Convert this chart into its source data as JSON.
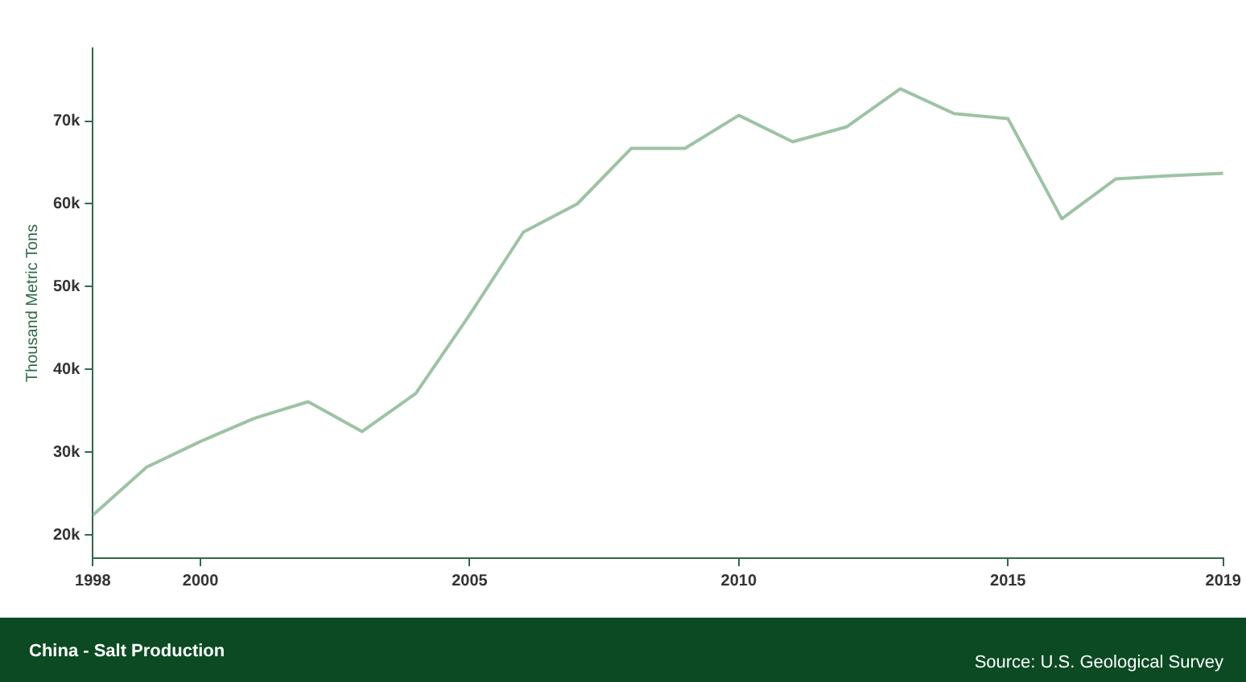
{
  "chart_data": {
    "type": "line",
    "title": "China - Salt Production",
    "ylabel": "Thousand Metric Tons",
    "x": [
      1998,
      1999,
      2000,
      2001,
      2002,
      2003,
      2004,
      2005,
      2006,
      2007,
      2008,
      2009,
      2010,
      2011,
      2012,
      2013,
      2014,
      2015,
      2016,
      2017,
      2018,
      2019
    ],
    "series": [
      {
        "color": "#9dc3a5",
        "values": [
          22400,
          28200,
          31300,
          34100,
          36100,
          32500,
          37100,
          46600,
          56600,
          60000,
          66700,
          66700,
          70700,
          67500,
          69300,
          73900,
          70900,
          70300,
          58200,
          63000,
          63400,
          63700
        ]
      }
    ],
    "xlim": [
      1998,
      2019
    ],
    "xticks": [
      1998,
      2000,
      2005,
      2010,
      2015,
      2019
    ],
    "ylim": [
      17200,
      78800
    ],
    "yticks": [
      {
        "value": 20000,
        "label": "20k"
      },
      {
        "value": 30000,
        "label": "30k"
      },
      {
        "value": 40000,
        "label": "40k"
      },
      {
        "value": 50000,
        "label": "50k"
      },
      {
        "value": 60000,
        "label": "60k"
      },
      {
        "value": 70000,
        "label": "70k"
      }
    ],
    "grid": false,
    "legend": false,
    "marker": "none",
    "line_style": "solid",
    "annotations": [
      "Source: U.S. Geological Survey"
    ]
  }
}
